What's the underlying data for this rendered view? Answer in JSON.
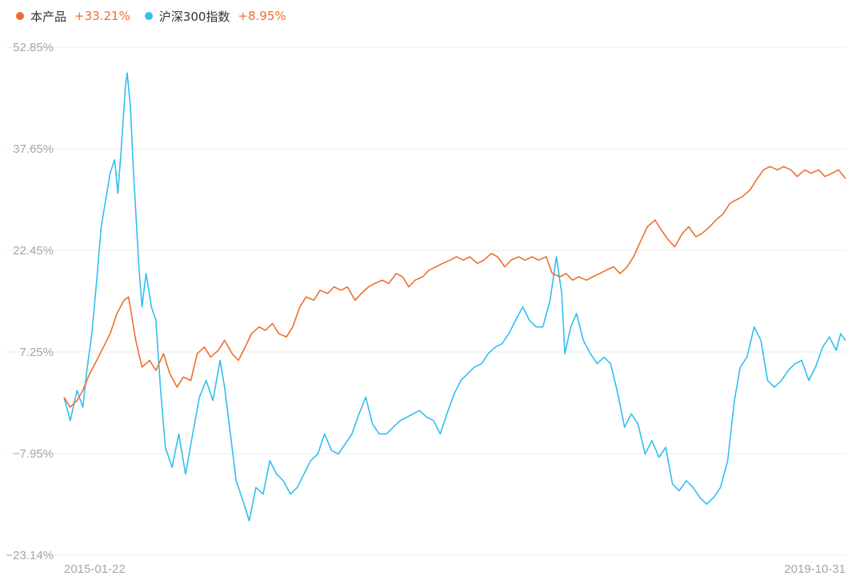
{
  "legend": [
    {
      "name": "本产品",
      "return": "+33.21%",
      "color": "#ee6f2d"
    },
    {
      "name": "沪深300指数",
      "return": "+8.95%",
      "color": "#31bff0"
    }
  ],
  "colors": {
    "grid": "#eeeeee",
    "axis_text": "#a6a6a6",
    "return_text": "#ee6f2d"
  },
  "chart_data": {
    "type": "line",
    "title": "",
    "xlabel": "",
    "ylabel": "",
    "x_range": [
      "2015-01-22",
      "2019-10-31"
    ],
    "x_tick_labels": [
      "2015-01-22",
      "2019-10-31"
    ],
    "y_tick_labels": [
      "52.85%",
      "37.65%",
      "22.45%",
      "7.25%",
      "−7.95%",
      "−23.14%"
    ],
    "ylim": [
      -23.14,
      52.85
    ],
    "grid": true,
    "legend_position": "top-left",
    "series": [
      {
        "name": "本产品",
        "color": "#ee6f2d",
        "final_return": "+33.21%",
        "points": [
          [
            "2015-01-22",
            0.5
          ],
          [
            "2015-02-05",
            -1.0
          ],
          [
            "2015-02-20",
            0.0
          ],
          [
            "2015-03-05",
            1.5
          ],
          [
            "2015-03-20",
            4.0
          ],
          [
            "2015-04-05",
            6.0
          ],
          [
            "2015-04-20",
            8.0
          ],
          [
            "2015-05-05",
            10.0
          ],
          [
            "2015-05-20",
            13.0
          ],
          [
            "2015-06-05",
            15.0
          ],
          [
            "2015-06-15",
            15.5
          ],
          [
            "2015-07-01",
            9.0
          ],
          [
            "2015-07-15",
            5.0
          ],
          [
            "2015-08-01",
            6.0
          ],
          [
            "2015-08-15",
            4.5
          ],
          [
            "2015-09-01",
            7.0
          ],
          [
            "2015-09-15",
            4.0
          ],
          [
            "2015-10-01",
            2.0
          ],
          [
            "2015-10-15",
            3.5
          ],
          [
            "2015-11-01",
            3.0
          ],
          [
            "2015-11-15",
            7.0
          ],
          [
            "2015-12-01",
            8.0
          ],
          [
            "2015-12-15",
            6.5
          ],
          [
            "2016-01-01",
            7.5
          ],
          [
            "2016-01-15",
            9.0
          ],
          [
            "2016-02-01",
            7.0
          ],
          [
            "2016-02-15",
            6.0
          ],
          [
            "2016-03-01",
            8.0
          ],
          [
            "2016-03-15",
            10.0
          ],
          [
            "2016-04-01",
            11.0
          ],
          [
            "2016-04-15",
            10.5
          ],
          [
            "2016-05-01",
            11.5
          ],
          [
            "2016-05-15",
            10.0
          ],
          [
            "2016-06-01",
            9.5
          ],
          [
            "2016-06-15",
            11.0
          ],
          [
            "2016-07-01",
            14.0
          ],
          [
            "2016-07-15",
            15.5
          ],
          [
            "2016-08-01",
            15.0
          ],
          [
            "2016-08-15",
            16.5
          ],
          [
            "2016-09-01",
            16.0
          ],
          [
            "2016-09-15",
            17.0
          ],
          [
            "2016-10-01",
            16.5
          ],
          [
            "2016-10-15",
            17.0
          ],
          [
            "2016-11-01",
            15.0
          ],
          [
            "2016-11-15",
            16.0
          ],
          [
            "2016-12-01",
            17.0
          ],
          [
            "2016-12-15",
            17.5
          ],
          [
            "2017-01-01",
            18.0
          ],
          [
            "2017-01-15",
            17.5
          ],
          [
            "2017-02-01",
            19.0
          ],
          [
            "2017-02-15",
            18.5
          ],
          [
            "2017-03-01",
            17.0
          ],
          [
            "2017-03-15",
            18.0
          ],
          [
            "2017-04-01",
            18.5
          ],
          [
            "2017-04-15",
            19.5
          ],
          [
            "2017-05-01",
            20.0
          ],
          [
            "2017-05-15",
            20.5
          ],
          [
            "2017-06-01",
            21.0
          ],
          [
            "2017-06-15",
            21.5
          ],
          [
            "2017-07-01",
            21.0
          ],
          [
            "2017-07-15",
            21.5
          ],
          [
            "2017-08-01",
            20.5
          ],
          [
            "2017-08-15",
            21.0
          ],
          [
            "2017-09-01",
            22.0
          ],
          [
            "2017-09-15",
            21.5
          ],
          [
            "2017-10-01",
            20.0
          ],
          [
            "2017-10-15",
            21.0
          ],
          [
            "2017-11-01",
            21.5
          ],
          [
            "2017-11-15",
            21.0
          ],
          [
            "2017-12-01",
            21.5
          ],
          [
            "2017-12-15",
            21.0
          ],
          [
            "2018-01-01",
            21.5
          ],
          [
            "2018-01-15",
            19.0
          ],
          [
            "2018-02-01",
            18.5
          ],
          [
            "2018-02-15",
            19.0
          ],
          [
            "2018-03-01",
            18.0
          ],
          [
            "2018-03-15",
            18.5
          ],
          [
            "2018-04-01",
            18.0
          ],
          [
            "2018-04-15",
            18.5
          ],
          [
            "2018-05-01",
            19.0
          ],
          [
            "2018-05-15",
            19.5
          ],
          [
            "2018-06-01",
            20.0
          ],
          [
            "2018-06-15",
            19.0
          ],
          [
            "2018-07-01",
            20.0
          ],
          [
            "2018-07-15",
            21.5
          ],
          [
            "2018-08-01",
            24.0
          ],
          [
            "2018-08-15",
            26.0
          ],
          [
            "2018-09-01",
            27.0
          ],
          [
            "2018-09-15",
            25.5
          ],
          [
            "2018-10-01",
            24.0
          ],
          [
            "2018-10-15",
            23.0
          ],
          [
            "2018-11-01",
            25.0
          ],
          [
            "2018-11-15",
            26.0
          ],
          [
            "2018-12-01",
            24.5
          ],
          [
            "2018-12-15",
            25.0
          ],
          [
            "2019-01-01",
            26.0
          ],
          [
            "2019-01-15",
            27.0
          ],
          [
            "2019-02-01",
            28.0
          ],
          [
            "2019-02-15",
            29.5
          ],
          [
            "2019-03-01",
            30.0
          ],
          [
            "2019-03-15",
            30.5
          ],
          [
            "2019-04-01",
            31.5
          ],
          [
            "2019-04-15",
            33.0
          ],
          [
            "2019-05-01",
            34.5
          ],
          [
            "2019-05-15",
            35.0
          ],
          [
            "2019-06-01",
            34.5
          ],
          [
            "2019-06-15",
            35.0
          ],
          [
            "2019-07-01",
            34.5
          ],
          [
            "2019-07-15",
            33.5
          ],
          [
            "2019-08-01",
            34.5
          ],
          [
            "2019-08-15",
            34.0
          ],
          [
            "2019-09-01",
            34.5
          ],
          [
            "2019-09-15",
            33.5
          ],
          [
            "2019-10-01",
            34.0
          ],
          [
            "2019-10-15",
            34.5
          ],
          [
            "2019-10-31",
            33.21
          ]
        ]
      },
      {
        "name": "沪深300指数",
        "color": "#31bff0",
        "final_return": "+8.95%",
        "points": [
          [
            "2015-01-22",
            0.5
          ],
          [
            "2015-02-05",
            -3.0
          ],
          [
            "2015-02-20",
            1.5
          ],
          [
            "2015-03-05",
            -1.0
          ],
          [
            "2015-03-15",
            5.0
          ],
          [
            "2015-03-25",
            10.0
          ],
          [
            "2015-04-05",
            18.0
          ],
          [
            "2015-04-15",
            26.0
          ],
          [
            "2015-04-25",
            30.0
          ],
          [
            "2015-05-05",
            34.0
          ],
          [
            "2015-05-15",
            36.0
          ],
          [
            "2015-05-22",
            31.0
          ],
          [
            "2015-05-29",
            37.0
          ],
          [
            "2015-06-05",
            44.0
          ],
          [
            "2015-06-08",
            47.0
          ],
          [
            "2015-06-12",
            49.0
          ],
          [
            "2015-06-19",
            44.0
          ],
          [
            "2015-06-26",
            34.0
          ],
          [
            "2015-07-03",
            26.0
          ],
          [
            "2015-07-08",
            20.0
          ],
          [
            "2015-07-15",
            14.0
          ],
          [
            "2015-07-24",
            19.0
          ],
          [
            "2015-08-05",
            14.0
          ],
          [
            "2015-08-15",
            12.0
          ],
          [
            "2015-08-25",
            2.0
          ],
          [
            "2015-09-05",
            -7.0
          ],
          [
            "2015-09-20",
            -10.0
          ],
          [
            "2015-10-05",
            -5.0
          ],
          [
            "2015-10-20",
            -11.0
          ],
          [
            "2015-11-05",
            -5.0
          ],
          [
            "2015-11-20",
            0.5
          ],
          [
            "2015-12-05",
            3.0
          ],
          [
            "2015-12-20",
            0.0
          ],
          [
            "2016-01-05",
            6.0
          ],
          [
            "2016-01-15",
            2.0
          ],
          [
            "2016-01-28",
            -5.0
          ],
          [
            "2016-02-10",
            -12.0
          ],
          [
            "2016-02-25",
            -15.0
          ],
          [
            "2016-03-10",
            -18.0
          ],
          [
            "2016-03-25",
            -13.0
          ],
          [
            "2016-04-10",
            -14.0
          ],
          [
            "2016-04-25",
            -9.0
          ],
          [
            "2016-05-10",
            -11.0
          ],
          [
            "2016-05-25",
            -12.0
          ],
          [
            "2016-06-10",
            -14.0
          ],
          [
            "2016-06-25",
            -13.0
          ],
          [
            "2016-07-10",
            -11.0
          ],
          [
            "2016-07-25",
            -9.0
          ],
          [
            "2016-08-10",
            -8.0
          ],
          [
            "2016-08-25",
            -5.0
          ],
          [
            "2016-09-10",
            -7.5
          ],
          [
            "2016-09-25",
            -8.0
          ],
          [
            "2016-10-10",
            -6.5
          ],
          [
            "2016-10-25",
            -5.0
          ],
          [
            "2016-11-10",
            -2.0
          ],
          [
            "2016-11-25",
            0.5
          ],
          [
            "2016-12-10",
            -3.5
          ],
          [
            "2016-12-25",
            -5.0
          ],
          [
            "2017-01-10",
            -5.0
          ],
          [
            "2017-01-25",
            -4.0
          ],
          [
            "2017-02-10",
            -3.0
          ],
          [
            "2017-02-25",
            -2.5
          ],
          [
            "2017-03-10",
            -2.0
          ],
          [
            "2017-03-25",
            -1.5
          ],
          [
            "2017-04-10",
            -2.5
          ],
          [
            "2017-04-25",
            -3.0
          ],
          [
            "2017-05-10",
            -5.0
          ],
          [
            "2017-05-25",
            -2.0
          ],
          [
            "2017-06-10",
            1.0
          ],
          [
            "2017-06-25",
            3.0
          ],
          [
            "2017-07-10",
            4.0
          ],
          [
            "2017-07-25",
            5.0
          ],
          [
            "2017-08-10",
            5.5
          ],
          [
            "2017-08-25",
            7.0
          ],
          [
            "2017-09-10",
            8.0
          ],
          [
            "2017-09-25",
            8.5
          ],
          [
            "2017-10-10",
            10.0
          ],
          [
            "2017-10-25",
            12.0
          ],
          [
            "2017-11-10",
            14.0
          ],
          [
            "2017-11-25",
            12.0
          ],
          [
            "2017-12-10",
            11.0
          ],
          [
            "2017-12-25",
            11.0
          ],
          [
            "2018-01-10",
            15.0
          ],
          [
            "2018-01-24",
            21.5
          ],
          [
            "2018-02-05",
            16.0
          ],
          [
            "2018-02-12",
            7.0
          ],
          [
            "2018-02-25",
            11.0
          ],
          [
            "2018-03-10",
            13.0
          ],
          [
            "2018-03-25",
            9.0
          ],
          [
            "2018-04-10",
            7.0
          ],
          [
            "2018-04-25",
            5.5
          ],
          [
            "2018-05-10",
            6.5
          ],
          [
            "2018-05-25",
            5.5
          ],
          [
            "2018-06-10",
            1.0
          ],
          [
            "2018-06-25",
            -4.0
          ],
          [
            "2018-07-10",
            -2.0
          ],
          [
            "2018-07-25",
            -3.5
          ],
          [
            "2018-08-10",
            -8.0
          ],
          [
            "2018-08-25",
            -6.0
          ],
          [
            "2018-09-10",
            -8.5
          ],
          [
            "2018-09-25",
            -7.0
          ],
          [
            "2018-10-10",
            -12.5
          ],
          [
            "2018-10-25",
            -13.5
          ],
          [
            "2018-11-10",
            -12.0
          ],
          [
            "2018-11-25",
            -13.0
          ],
          [
            "2018-12-10",
            -14.5
          ],
          [
            "2018-12-25",
            -15.5
          ],
          [
            "2019-01-10",
            -14.5
          ],
          [
            "2019-01-25",
            -13.0
          ],
          [
            "2019-02-10",
            -9.0
          ],
          [
            "2019-02-25",
            0.0
          ],
          [
            "2019-03-10",
            5.0
          ],
          [
            "2019-03-25",
            6.5
          ],
          [
            "2019-04-10",
            11.0
          ],
          [
            "2019-04-25",
            9.0
          ],
          [
            "2019-05-10",
            3.0
          ],
          [
            "2019-05-25",
            2.0
          ],
          [
            "2019-06-10",
            3.0
          ],
          [
            "2019-06-25",
            4.5
          ],
          [
            "2019-07-10",
            5.5
          ],
          [
            "2019-07-25",
            6.0
          ],
          [
            "2019-08-10",
            3.0
          ],
          [
            "2019-08-25",
            5.0
          ],
          [
            "2019-09-10",
            8.0
          ],
          [
            "2019-09-25",
            9.5
          ],
          [
            "2019-10-10",
            7.5
          ],
          [
            "2019-10-20",
            10.0
          ],
          [
            "2019-10-31",
            8.95
          ]
        ]
      }
    ]
  }
}
